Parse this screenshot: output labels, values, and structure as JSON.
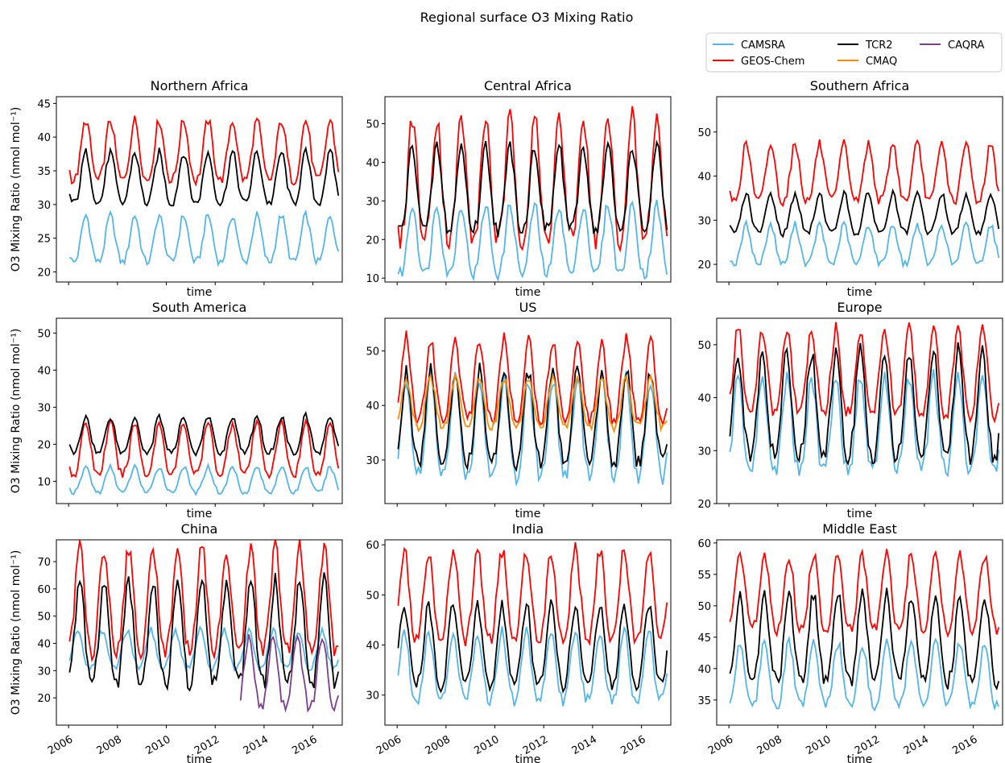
{
  "figure": {
    "title": "Regional surface O3 Mixing Ratio",
    "ylabel": "O3 Mixing Ratio (nmol mol⁻¹)",
    "xlabel": "time"
  },
  "chart_data": {
    "type": "line",
    "x_start_year": 2006,
    "x_end_year": 2017,
    "x_ticks": [
      "2006",
      "2008",
      "2010",
      "2012",
      "2014",
      "2016"
    ],
    "legend": {
      "placement": "top-right",
      "entries": [
        {
          "name": "CAMSRA",
          "color": "#56B4E9"
        },
        {
          "name": "GEOS-Chem",
          "color": "#FF0000"
        },
        {
          "name": "TCR2",
          "color": "#000000"
        },
        {
          "name": "CMAQ",
          "color": "#FF8C00"
        },
        {
          "name": "CAQRA",
          "color": "#7B3F8C"
        }
      ]
    },
    "panels": [
      {
        "title": "Northern Africa",
        "ylim": [
          18.5,
          46
        ],
        "yticks": [
          20,
          25,
          30,
          35,
          40,
          45
        ],
        "series": [
          {
            "name": "CAMSRA",
            "mean": 24.5,
            "amp": 3.5,
            "peak_month": 9
          },
          {
            "name": "GEOS-Chem",
            "mean": 37.5,
            "amp": 4.5,
            "peak_month": 9
          },
          {
            "name": "TCR2",
            "mean": 33.5,
            "amp": 3.8,
            "peak_month": 9
          }
        ]
      },
      {
        "title": "Central Africa",
        "ylim": [
          9,
          57
        ],
        "yticks": [
          10,
          20,
          30,
          40,
          50
        ],
        "series": [
          {
            "name": "CAMSRA",
            "mean": 19,
            "amp": 9,
            "peak_month": 8
          },
          {
            "name": "GEOS-Chem",
            "mean": 34,
            "amp": 16,
            "peak_month": 8
          },
          {
            "name": "TCR2",
            "mean": 32,
            "amp": 11,
            "peak_month": 8
          }
        ]
      },
      {
        "title": "Southern Africa",
        "ylim": [
          16,
          58
        ],
        "yticks": [
          20,
          30,
          40,
          50
        ],
        "series": [
          {
            "name": "CAMSRA",
            "mean": 24,
            "amp": 4.5,
            "peak_month": 9
          },
          {
            "name": "GEOS-Chem",
            "mean": 40,
            "amp": 6.5,
            "peak_month": 9
          },
          {
            "name": "TCR2",
            "mean": 31,
            "amp": 4.5,
            "peak_month": 9
          }
        ]
      },
      {
        "title": "South America",
        "ylim": [
          4,
          54
        ],
        "yticks": [
          10,
          20,
          30,
          40,
          50
        ],
        "series": [
          {
            "name": "CAMSRA",
            "mean": 10,
            "amp": 3.5,
            "peak_month": 9
          },
          {
            "name": "GEOS-Chem",
            "mean": 18,
            "amp": 7,
            "peak_month": 9
          },
          {
            "name": "TCR2",
            "mean": 22,
            "amp": 5,
            "peak_month": 9
          }
        ]
      },
      {
        "title": "US",
        "ylim": [
          22,
          56
        ],
        "yticks": [
          30,
          40,
          50
        ],
        "series": [
          {
            "name": "CAMSRA",
            "mean": 35,
            "amp": 9,
            "peak_month": 5
          },
          {
            "name": "GEOS-Chem",
            "mean": 44,
            "amp": 7.5,
            "peak_month": 5
          },
          {
            "name": "TCR2",
            "mean": 37,
            "amp": 8.5,
            "peak_month": 5
          },
          {
            "name": "CMAQ",
            "mean": 40,
            "amp": 4.5,
            "peak_month": 5
          }
        ]
      },
      {
        "title": "Europe",
        "ylim": [
          20,
          55
        ],
        "yticks": [
          20,
          30,
          40,
          50
        ],
        "series": [
          {
            "name": "CAMSRA",
            "mean": 34,
            "amp": 9,
            "peak_month": 5
          },
          {
            "name": "GEOS-Chem",
            "mean": 44,
            "amp": 8,
            "peak_month": 5
          },
          {
            "name": "TCR2",
            "mean": 37.5,
            "amp": 10,
            "peak_month": 5
          }
        ]
      },
      {
        "title": "China",
        "ylim": [
          10,
          78
        ],
        "yticks": [
          20,
          30,
          40,
          50,
          60,
          70
        ],
        "series": [
          {
            "name": "CAMSRA",
            "mean": 37,
            "amp": 7,
            "peak_month": 5
          },
          {
            "name": "GEOS-Chem",
            "mean": 54,
            "amp": 19,
            "peak_month": 6
          },
          {
            "name": "TCR2",
            "mean": 42,
            "amp": 19,
            "peak_month": 6
          },
          {
            "name": "CAQRA",
            "mean": 28,
            "amp": 13,
            "peak_month": 5,
            "start_year": 2013
          }
        ]
      },
      {
        "title": "India",
        "ylim": [
          24,
          61
        ],
        "yticks": [
          30,
          40,
          50,
          60
        ],
        "series": [
          {
            "name": "CAMSRA",
            "mean": 35,
            "amp": 7,
            "peak_month": 4
          },
          {
            "name": "GEOS-Chem",
            "mean": 49,
            "amp": 9,
            "peak_month": 4
          },
          {
            "name": "TCR2",
            "mean": 39,
            "amp": 8,
            "peak_month": 4
          }
        ]
      },
      {
        "title": "Middle East",
        "ylim": [
          31,
          60.5
        ],
        "yticks": [
          35,
          40,
          45,
          50,
          55,
          60
        ],
        "series": [
          {
            "name": "CAMSRA",
            "mean": 38.5,
            "amp": 5,
            "peak_month": 6
          },
          {
            "name": "GEOS-Chem",
            "mean": 51.5,
            "amp": 6,
            "peak_month": 6
          },
          {
            "name": "TCR2",
            "mean": 44,
            "amp": 7,
            "peak_month": 6
          }
        ]
      }
    ]
  }
}
